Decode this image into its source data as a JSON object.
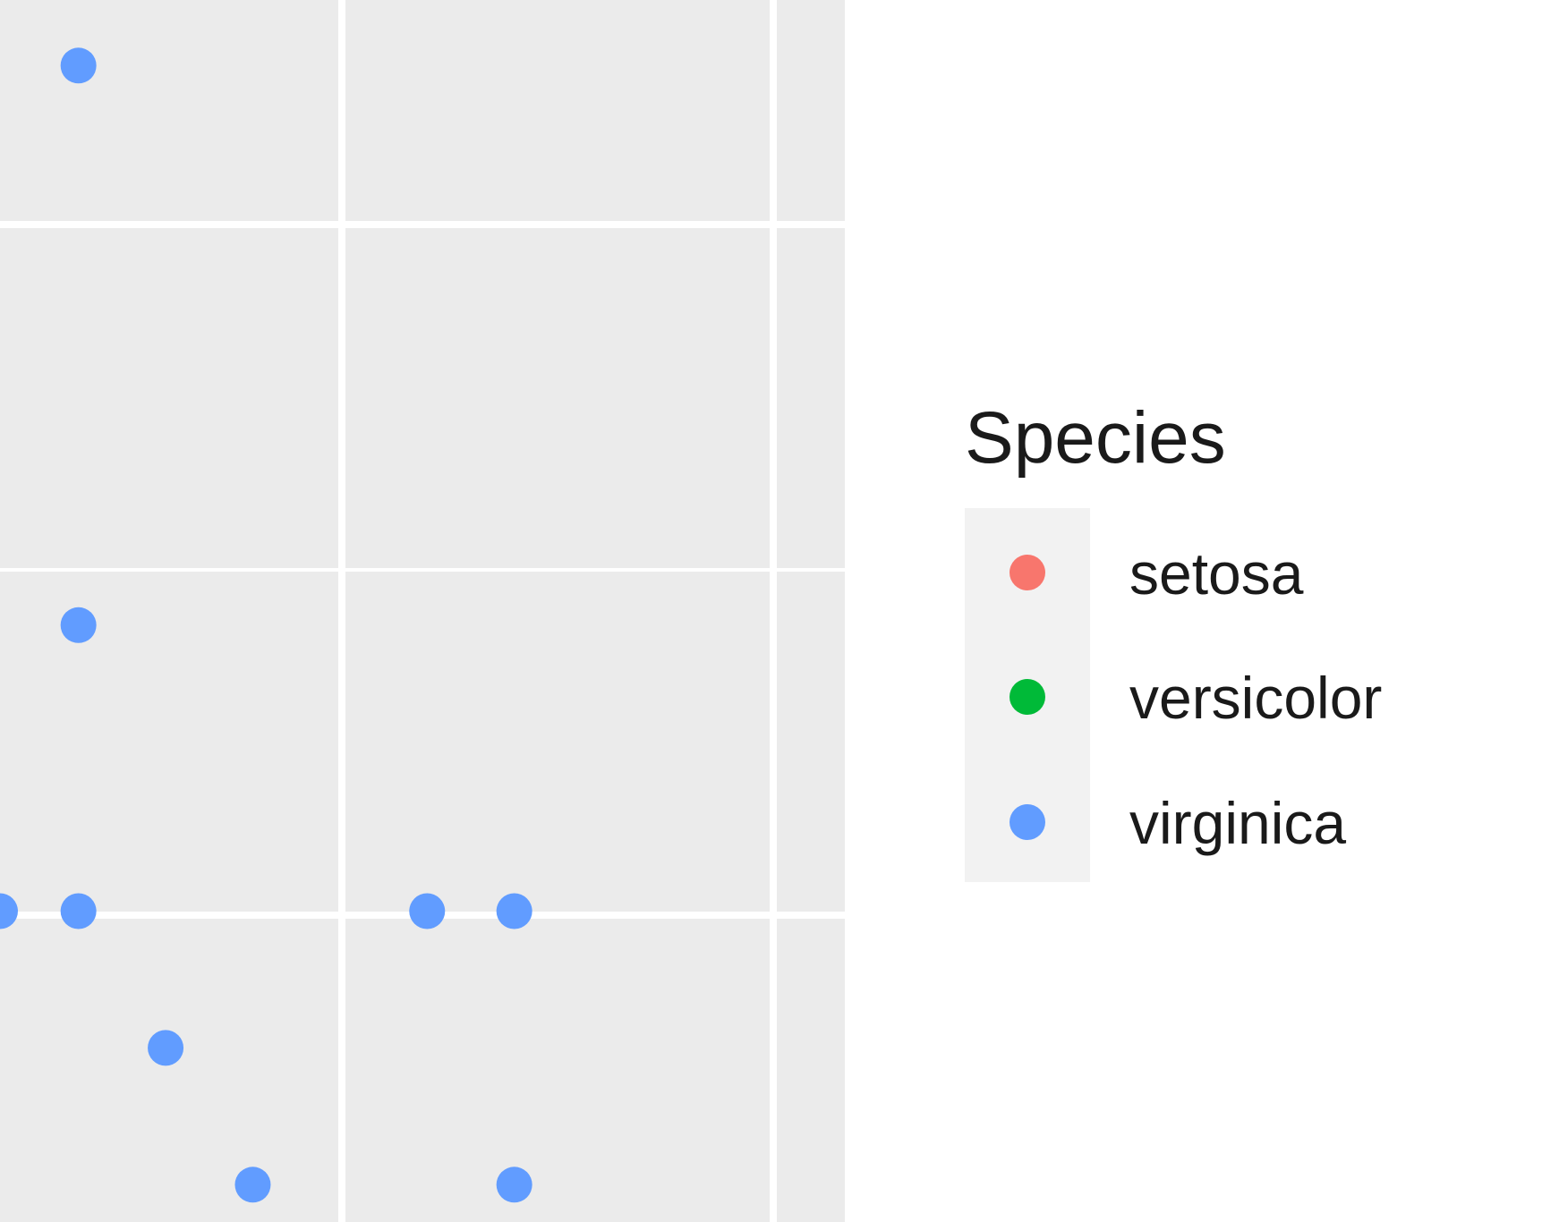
{
  "chart_data": {
    "type": "scatter",
    "title": "",
    "xlabel": "",
    "ylabel": "",
    "grid": true,
    "legend": {
      "title": "Species",
      "position": "right",
      "entries": [
        {
          "label": "setosa",
          "color": "#F8766D"
        },
        {
          "label": "versicolor",
          "color": "#00BA38"
        },
        {
          "label": "virginica",
          "color": "#619CFF"
        }
      ]
    },
    "panel_background": "#EBEBEB",
    "gridline_color": "#FFFFFF",
    "series": [
      {
        "name": "virginica",
        "color": "#619CFF",
        "points": [
          {
            "x": 0.18,
            "y": 0.93
          },
          {
            "x": 0.18,
            "y": 0.48
          },
          {
            "x": 0.0,
            "y": 0.25
          },
          {
            "x": 0.18,
            "y": 0.25
          },
          {
            "x": 0.98,
            "y": 0.25
          },
          {
            "x": 1.18,
            "y": 0.25
          },
          {
            "x": 0.38,
            "y": 0.14
          },
          {
            "x": 0.58,
            "y": 0.03
          },
          {
            "x": 1.18,
            "y": 0.03
          }
        ]
      }
    ]
  }
}
